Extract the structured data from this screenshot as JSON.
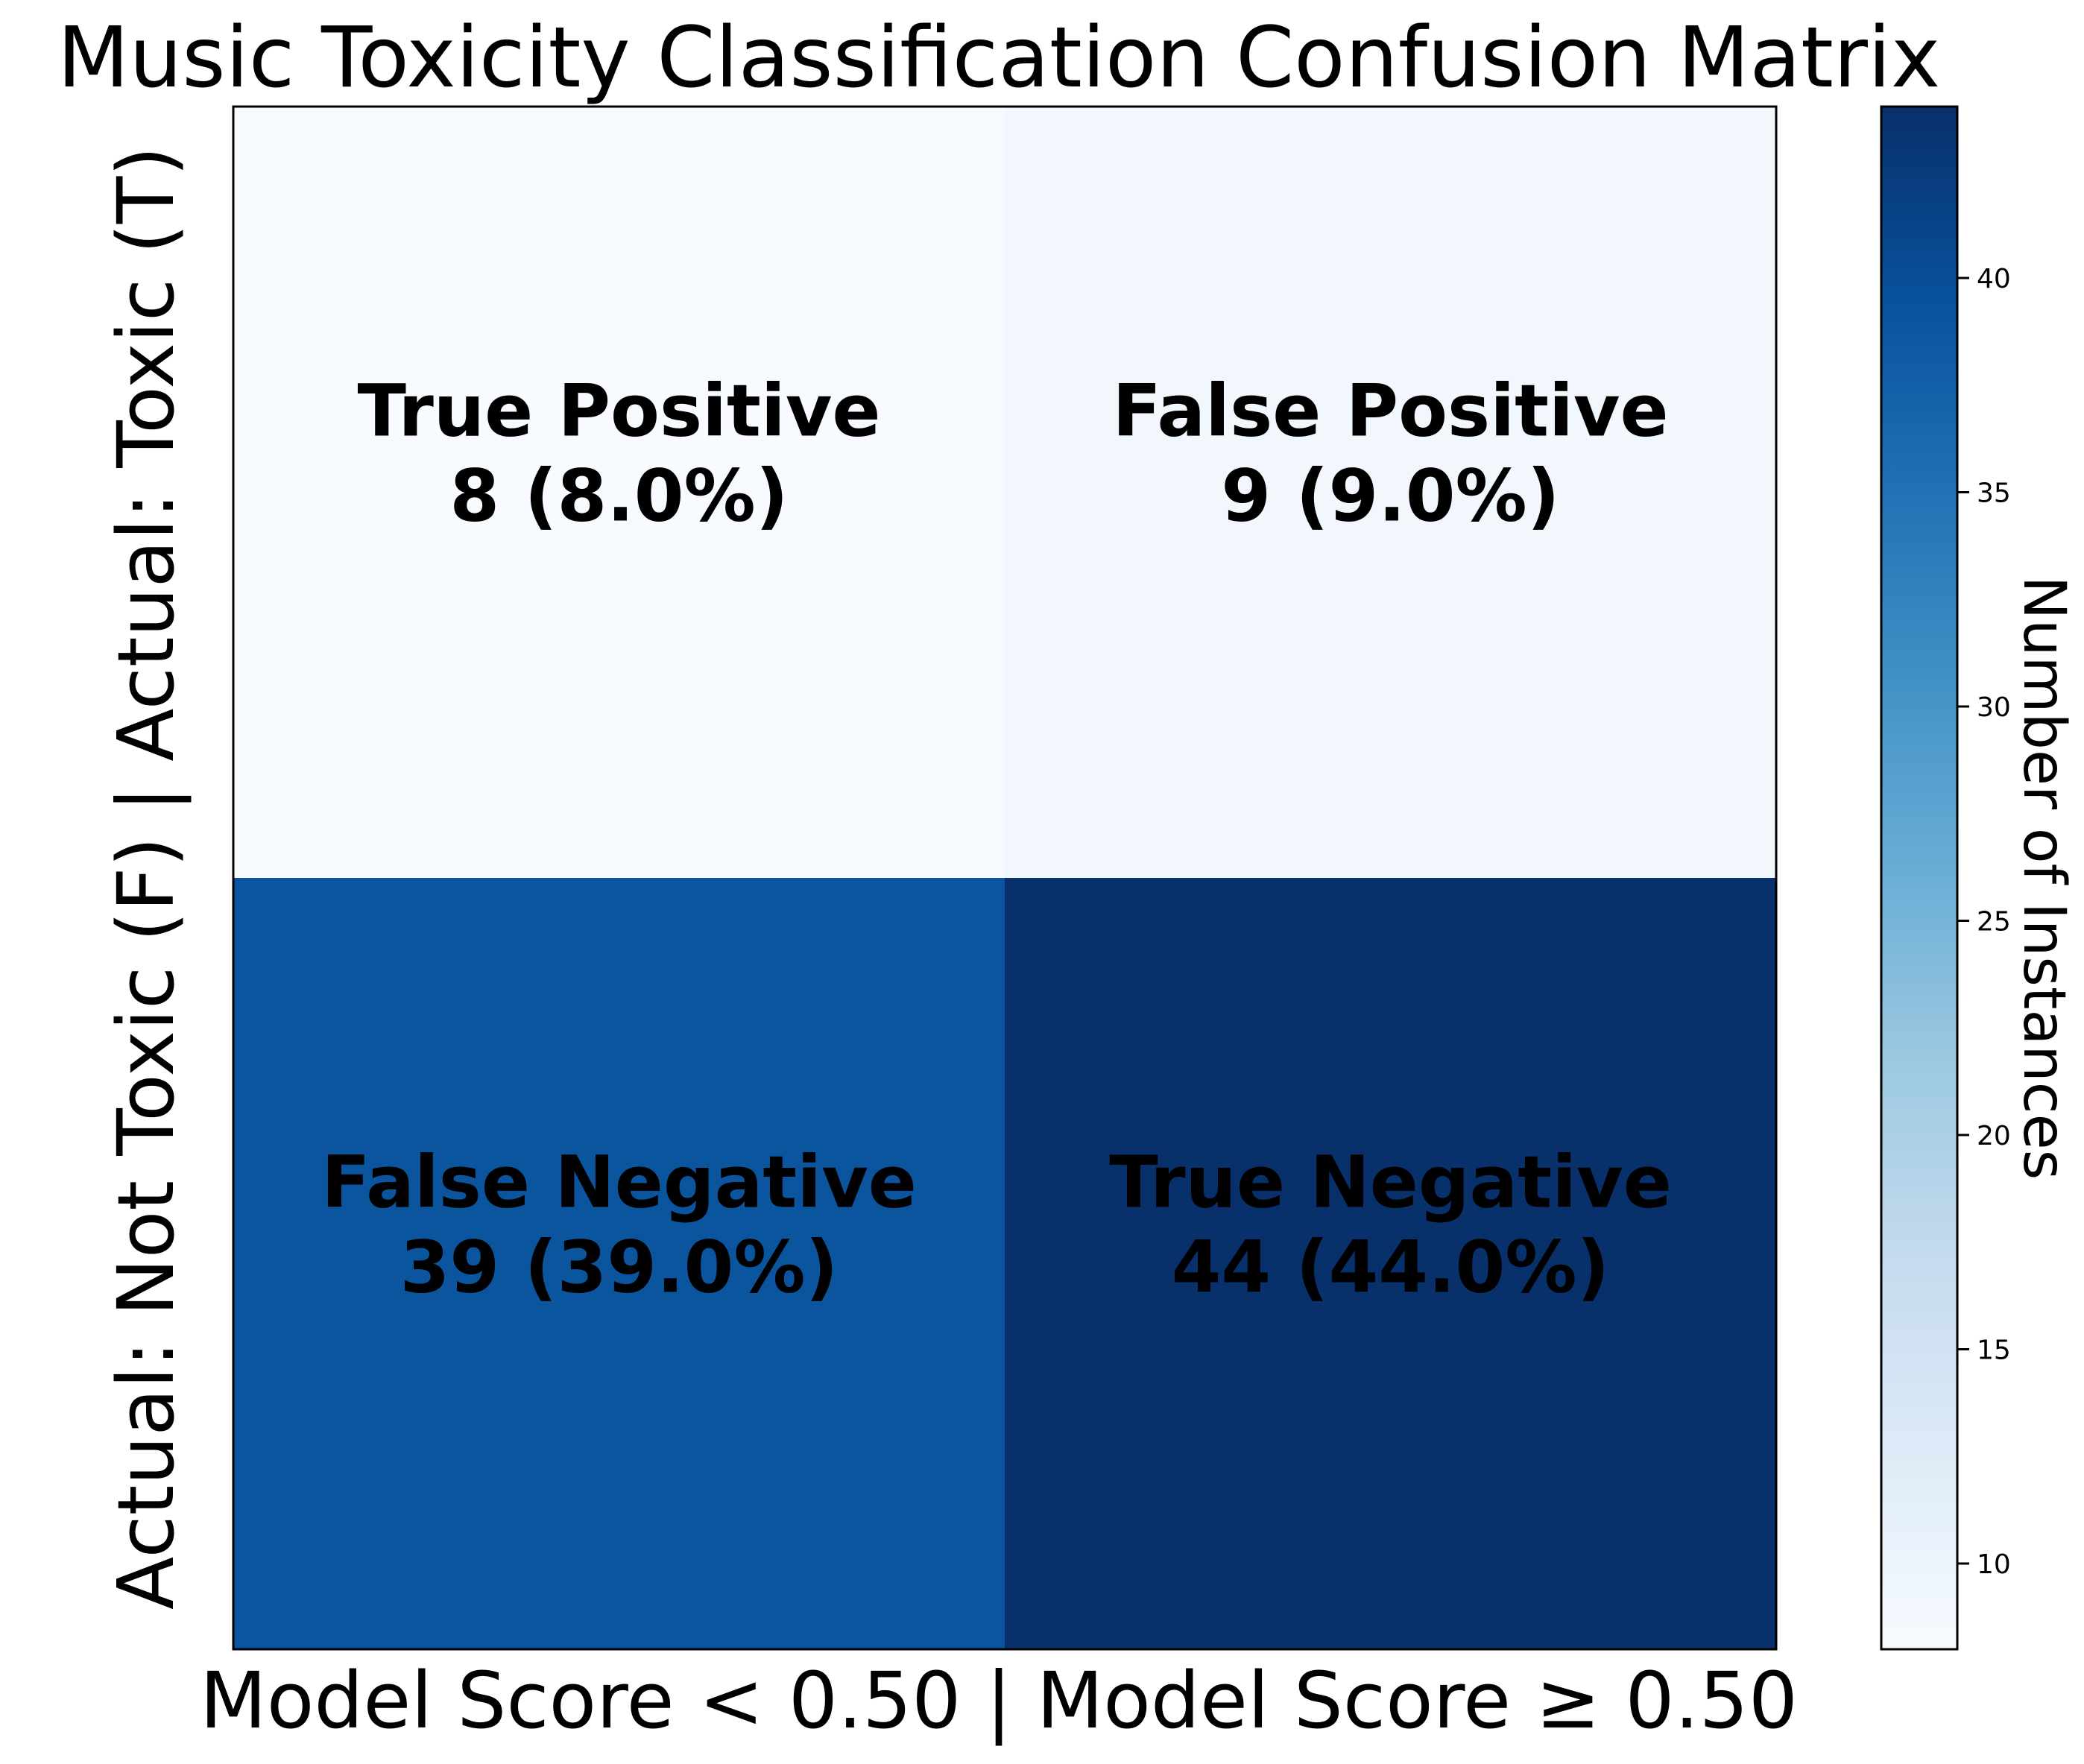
{
  "chart_data": {
    "type": "heatmap",
    "title": "Music Toxicity Classification Confusion Matrix",
    "xlabel": "Model Score < 0.50 | Model Score ≥ 0.50",
    "ylabel": "Actual: Not Toxic (F) | Actual: Toxic (T)",
    "colormap": "Blues",
    "grid": false,
    "cells": [
      {
        "row": 0,
        "col": 0,
        "name": "True Positive",
        "value": 8,
        "label": "8 (8.0%)"
      },
      {
        "row": 0,
        "col": 1,
        "name": "False Positive",
        "value": 9,
        "label": "9 (9.0%)"
      },
      {
        "row": 1,
        "col": 0,
        "name": "False Negative",
        "value": 39,
        "label": "39 (39.0%)"
      },
      {
        "row": 1,
        "col": 1,
        "name": "True Negative",
        "value": 44,
        "label": "44 (44.0%)"
      }
    ],
    "colorbar": {
      "label": "Number of Instances",
      "range": [
        8,
        44
      ],
      "ticks": [
        10,
        15,
        20,
        25,
        30,
        35,
        40
      ]
    }
  },
  "colors": {
    "ramp": [
      "#f7fbff",
      "#deebf7",
      "#c6dbef",
      "#9ecae1",
      "#6baed6",
      "#4292c6",
      "#2171b5",
      "#08519c",
      "#08306b"
    ]
  }
}
